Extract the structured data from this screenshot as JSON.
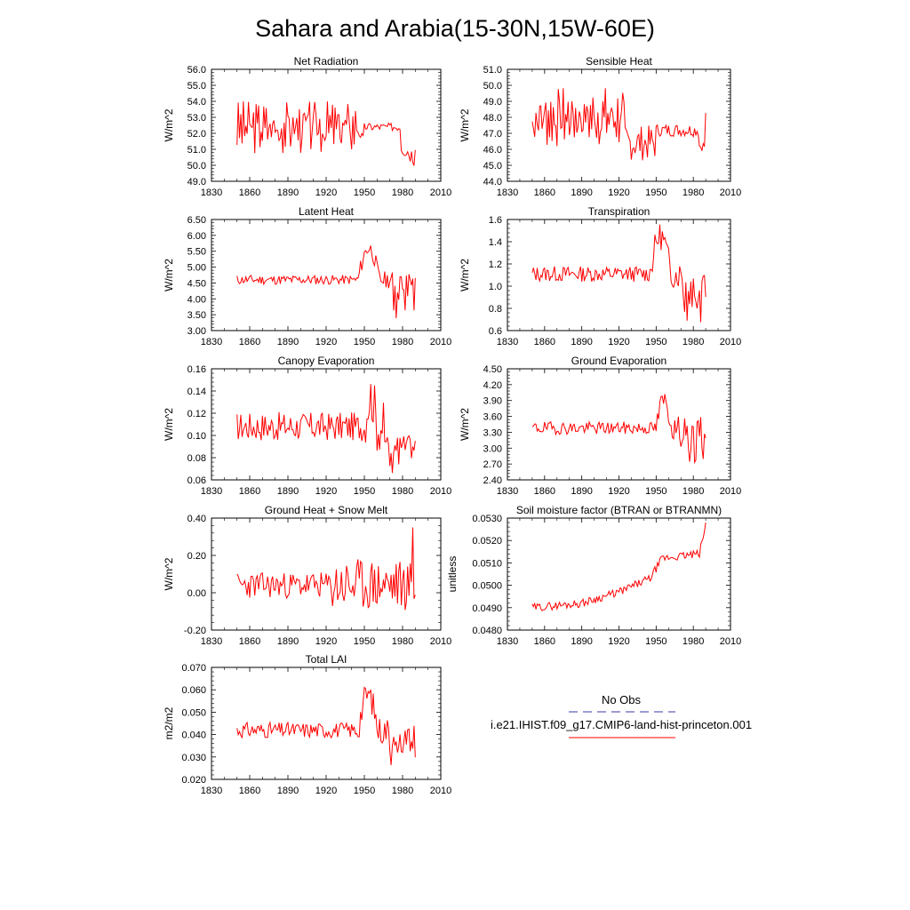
{
  "title": "Sahara and Arabia(15-30N,15W-60E)",
  "colors": {
    "model": "#ff0000",
    "obs": "#3a3aa8",
    "axis": "#000000"
  },
  "legend": {
    "obs_label": "No Obs",
    "model_label": "i.e21.IHIST.f09_g17.CMIP6-land-hist-princeton.001"
  },
  "chart_data": [
    {
      "type": "line",
      "title": "Net Radiation",
      "ylabel": "W/m^2",
      "xlim": [
        1830,
        2010
      ],
      "ylim": [
        49.0,
        56.0
      ],
      "xticks": [
        1830,
        1860,
        1890,
        1920,
        1950,
        1980,
        2010
      ],
      "yticks": [
        "49.0",
        "50.0",
        "51.0",
        "52.0",
        "53.0",
        "54.0",
        "55.0",
        "56.0"
      ],
      "series": [
        {
          "x_start": 1850,
          "x_end": 1990,
          "gen": {
            "type": "oscdrop",
            "base": 52.4,
            "amp": 1.3,
            "seed": 3,
            "post": [
              [
                1944,
                1950,
                52.3,
                -0.8,
                0.3
              ],
              [
                1950,
                1979,
                52.4,
                0,
                0.25
              ],
              [
                1979,
                1990,
                51.3,
                -0.8,
                0.6
              ]
            ]
          }
        }
      ]
    },
    {
      "type": "line",
      "title": "Sensible Heat",
      "ylabel": "W/m^2",
      "xlim": [
        1830,
        2010
      ],
      "ylim": [
        44.0,
        51.0
      ],
      "xticks": [
        1830,
        1860,
        1890,
        1920,
        1950,
        1980,
        2010
      ],
      "yticks": [
        "44.0",
        "45.0",
        "46.0",
        "47.0",
        "48.0",
        "49.0",
        "50.0",
        "51.0"
      ],
      "series": [
        {
          "x_start": 1850,
          "x_end": 1990,
          "gen": {
            "type": "oscdrop",
            "base": 48.0,
            "amp": 1.5,
            "seed": 7,
            "post": [
              [
                1925,
                1950,
                46.4,
                0,
                1.1
              ],
              [
                1950,
                1985,
                47.2,
                0,
                0.4
              ],
              [
                1985,
                1990,
                46.2,
                0,
                0.3
              ]
            ]
          }
        }
      ]
    },
    {
      "type": "line",
      "title": "Latent Heat",
      "ylabel": "W/m^2",
      "xlim": [
        1830,
        2010
      ],
      "ylim": [
        3.0,
        6.5
      ],
      "xticks": [
        1830,
        1860,
        1890,
        1920,
        1950,
        1980,
        2010
      ],
      "yticks": [
        "3.00",
        "3.50",
        "4.00",
        "4.50",
        "5.00",
        "5.50",
        "6.00",
        "6.50"
      ],
      "series": [
        {
          "x_start": 1850,
          "x_end": 1990,
          "gen": {
            "type": "rise",
            "base": 4.6,
            "amp": 0.15,
            "seed": 11,
            "bump": [
              1945,
              1972,
              5.6
            ],
            "dip": [
              1972,
              1990,
              4.4,
              1.0
            ]
          }
        }
      ]
    },
    {
      "type": "line",
      "title": "Transpiration",
      "ylabel": "W/m^2",
      "xlim": [
        1830,
        2010
      ],
      "ylim": [
        0.6,
        1.6
      ],
      "xticks": [
        1830,
        1860,
        1890,
        1920,
        1950,
        1980,
        2010
      ],
      "yticks": [
        "0.6",
        "0.8",
        "1.0",
        "1.2",
        "1.4",
        "1.6"
      ],
      "series": [
        {
          "x_start": 1850,
          "x_end": 1990,
          "gen": {
            "type": "rise",
            "base": 1.11,
            "amp": 0.07,
            "seed": 13,
            "bump": [
              1945,
              1972,
              1.45
            ],
            "dip": [
              1972,
              1990,
              1.0,
              0.3
            ]
          }
        }
      ]
    },
    {
      "type": "line",
      "title": "Canopy Evaporation",
      "ylabel": "W/m^2",
      "xlim": [
        1830,
        2010
      ],
      "ylim": [
        0.06,
        0.16
      ],
      "xticks": [
        1830,
        1860,
        1890,
        1920,
        1950,
        1980,
        2010
      ],
      "yticks": [
        "0.06",
        "0.08",
        "0.10",
        "0.12",
        "0.14",
        "0.16"
      ],
      "series": [
        {
          "x_start": 1850,
          "x_end": 1990,
          "gen": {
            "type": "rise",
            "base": 0.108,
            "amp": 0.013,
            "seed": 17,
            "bump": [
              1950,
              1966,
              0.135
            ],
            "dip": [
              1966,
              1990,
              0.09,
              0.022
            ]
          }
        }
      ]
    },
    {
      "type": "line",
      "title": "Ground Evaporation",
      "ylabel": "W/m^2",
      "xlim": [
        1830,
        2010
      ],
      "ylim": [
        2.4,
        4.5
      ],
      "xticks": [
        1830,
        1860,
        1890,
        1920,
        1950,
        1980,
        2010
      ],
      "yticks": [
        "2.40",
        "2.70",
        "3.00",
        "3.30",
        "3.60",
        "3.90",
        "4.20",
        "4.50"
      ],
      "series": [
        {
          "x_start": 1850,
          "x_end": 1990,
          "gen": {
            "type": "rise",
            "base": 3.38,
            "amp": 0.12,
            "seed": 19,
            "bump": [
              1950,
              1970,
              3.9
            ],
            "dip": [
              1970,
              1990,
              3.3,
              0.6
            ]
          }
        }
      ]
    },
    {
      "type": "line",
      "title": "Ground Heat + Snow Melt",
      "ylabel": "W/m^2",
      "xlim": [
        1830,
        2010
      ],
      "ylim": [
        -0.2,
        0.4
      ],
      "xticks": [
        1830,
        1860,
        1890,
        1920,
        1950,
        1980,
        2010
      ],
      "yticks": [
        "-0.20",
        "0.00",
        "0.20",
        "0.40"
      ],
      "series": [
        {
          "x_start": 1850,
          "x_end": 1990,
          "gen": {
            "type": "noise",
            "base": 0.04,
            "amp": 0.05,
            "seed": 23,
            "amp_late": [
              1925,
              0.1
            ],
            "spike": [
              1988,
              0.35
            ]
          }
        }
      ]
    },
    {
      "type": "line",
      "title": "Soil moisture factor (BTRAN or BTRANMN)",
      "ylabel": "unitless",
      "xlim": [
        1830,
        2010
      ],
      "ylim": [
        0.048,
        0.053
      ],
      "xticks": [
        1830,
        1860,
        1890,
        1920,
        1950,
        1980,
        2010
      ],
      "yticks": [
        "0.0480",
        "0.0490",
        "0.0500",
        "0.0510",
        "0.0520",
        "0.0530"
      ],
      "series": [
        {
          "x_start": 1850,
          "x_end": 1990,
          "gen": {
            "type": "trend",
            "seed": 29,
            "amp": 0.00018,
            "knots": [
              [
                1850,
                0.049
              ],
              [
                1890,
                0.0492
              ],
              [
                1920,
                0.0497
              ],
              [
                1945,
                0.0503
              ],
              [
                1955,
                0.0512
              ],
              [
                1985,
                0.0514
              ],
              [
                1990,
                0.0527
              ]
            ]
          }
        }
      ]
    },
    {
      "type": "line",
      "title": "Total LAI",
      "ylabel": "m2/m2",
      "xlim": [
        1830,
        2010
      ],
      "ylim": [
        0.02,
        0.07
      ],
      "xticks": [
        1830,
        1860,
        1890,
        1920,
        1950,
        1980,
        2010
      ],
      "yticks": [
        "0.020",
        "0.030",
        "0.040",
        "0.050",
        "0.060",
        "0.070"
      ],
      "series": [
        {
          "x_start": 1850,
          "x_end": 1990,
          "gen": {
            "type": "rise",
            "base": 0.042,
            "amp": 0.0035,
            "seed": 31,
            "bump": [
              1945,
              1970,
              0.058
            ],
            "dip": [
              1970,
              1990,
              0.038,
              0.012
            ]
          }
        }
      ]
    }
  ]
}
